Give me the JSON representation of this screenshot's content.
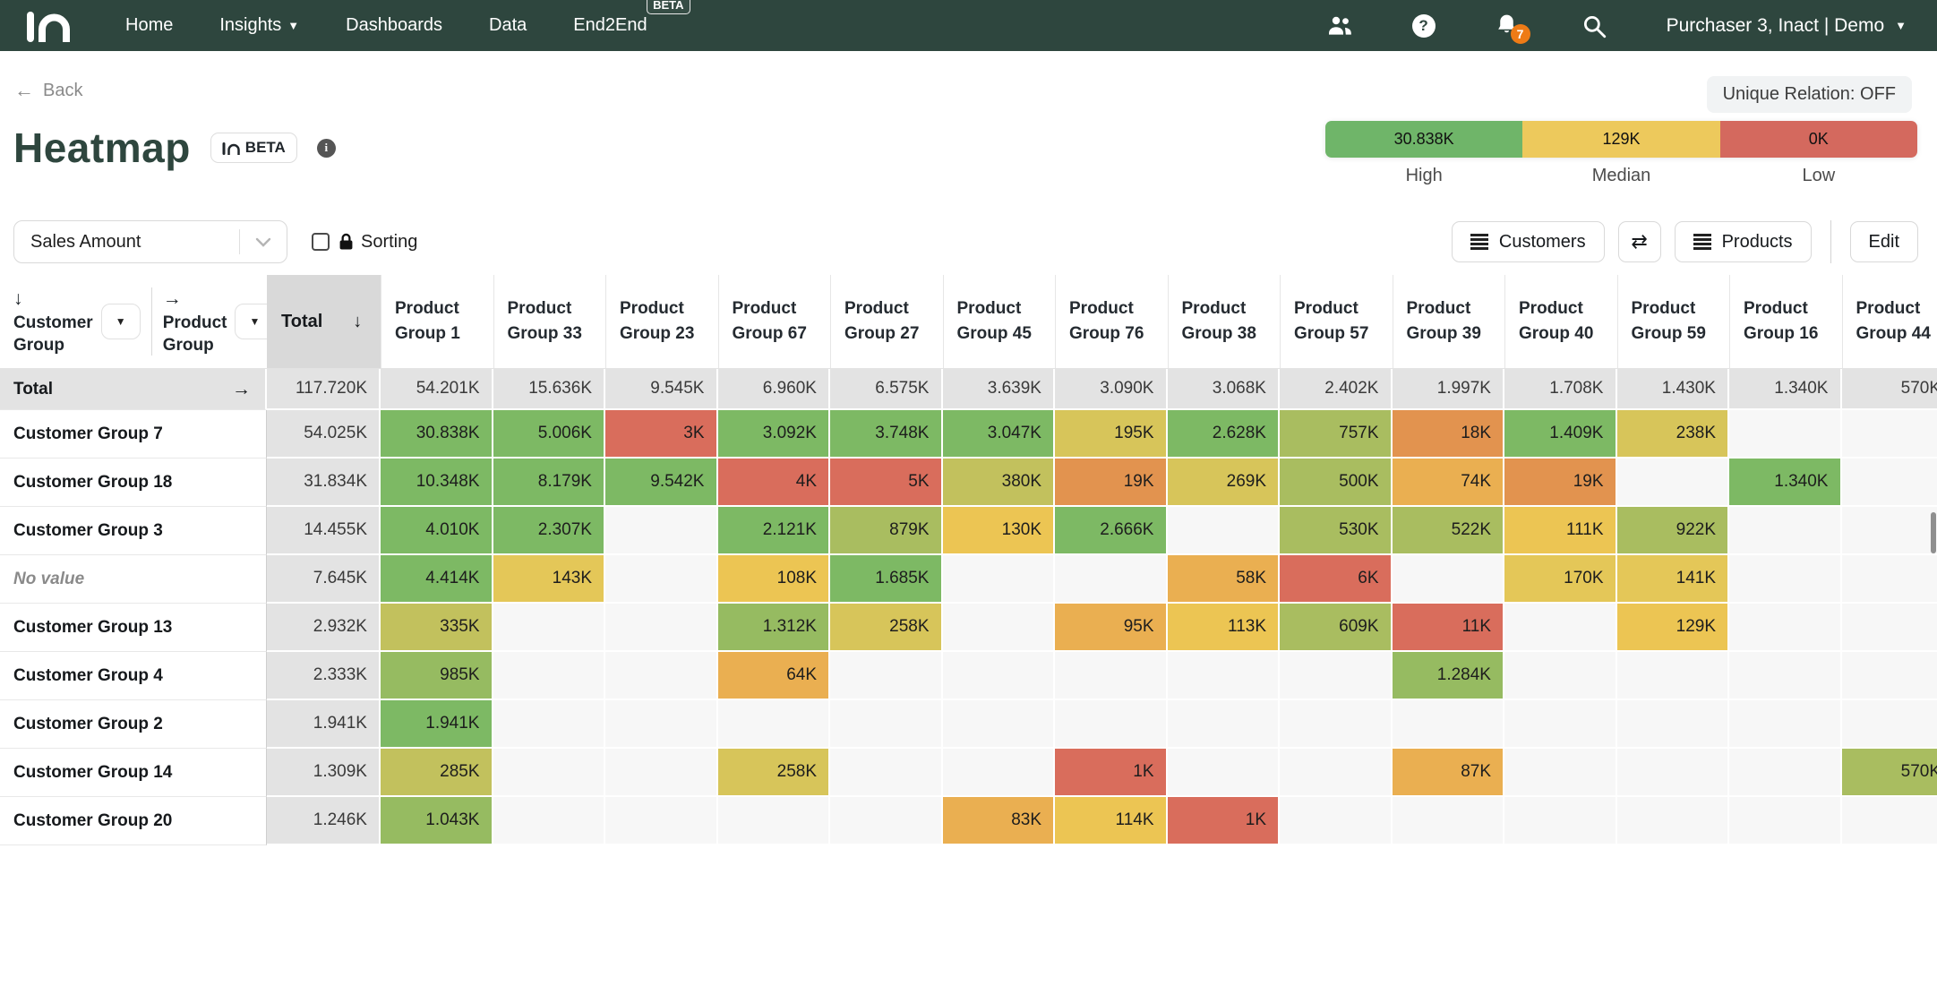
{
  "navbar": {
    "items": [
      {
        "label": "Home"
      },
      {
        "label": "Insights",
        "caret": true
      },
      {
        "label": "Dashboards"
      },
      {
        "label": "Data"
      },
      {
        "label": "End2End",
        "beta": "BETA"
      }
    ],
    "notification_count": "7",
    "user_menu": "Purchaser 3, Inact | Demo",
    "colors": {
      "bg": "#2e463e",
      "badge": "#ee7b16"
    }
  },
  "toolbar": {
    "back_label": "Back",
    "unique_relation": "Unique Relation: OFF"
  },
  "header": {
    "title": "Heatmap",
    "beta_badge": "BETA"
  },
  "legend": {
    "items": [
      {
        "label": "High",
        "value": "30.838K",
        "color": "#6fb569"
      },
      {
        "label": "Median",
        "value": "129K",
        "color": "#edc95c"
      },
      {
        "label": "Low",
        "value": "0K",
        "color": "#d4695e"
      }
    ]
  },
  "controls": {
    "measure_select": "Sales Amount",
    "sorting_label": "Sorting",
    "sorting_checked": false,
    "customers_button": "Customers",
    "products_button": "Products",
    "edit_button": "Edit"
  },
  "table": {
    "row_dimension": {
      "arrow": "↓",
      "label": "Customer Group"
    },
    "col_dimension": {
      "arrow": "→",
      "label": "Product Group"
    },
    "total_header": {
      "label": "Total",
      "sort_arrow": "↓"
    },
    "columns": [
      "Product Group 1",
      "Product Group 33",
      "Product Group 23",
      "Product Group 67",
      "Product Group 27",
      "Product Group 45",
      "Product Group 76",
      "Product Group 38",
      "Product Group 57",
      "Product Group 39",
      "Product Group 40",
      "Product Group 59",
      "Product Group 16",
      "Product Group 44"
    ],
    "palette": {
      "g1": "#7db964",
      "g2": "#96bb61",
      "yg": "#a9bd60",
      "ol": "#c2c15d",
      "y1": "#d7c55a",
      "y2": "#e4c758",
      "gd": "#ecc553",
      "am": "#eaaf51",
      "or": "#e2934f",
      "r": "#d96d5c",
      "empty": "#f7f7f7"
    },
    "total_row": {
      "label": "Total",
      "arrow": "→",
      "total": "117.720K",
      "values": [
        "54.201K",
        "15.636K",
        "9.545K",
        "6.960K",
        "6.575K",
        "3.639K",
        "3.090K",
        "3.068K",
        "2.402K",
        "1.997K",
        "1.708K",
        "1.430K",
        "1.340K",
        "570K"
      ]
    },
    "rows": [
      {
        "label": "Customer Group 7",
        "italic": false,
        "total": "54.025K",
        "cells": [
          [
            "30.838K",
            "g1"
          ],
          [
            "5.006K",
            "g1"
          ],
          [
            "3K",
            "r"
          ],
          [
            "3.092K",
            "g1"
          ],
          [
            "3.748K",
            "g1"
          ],
          [
            "3.047K",
            "g1"
          ],
          [
            "195K",
            "y1"
          ],
          [
            "2.628K",
            "g1"
          ],
          [
            "757K",
            "yg"
          ],
          [
            "18K",
            "or"
          ],
          [
            "1.409K",
            "g1"
          ],
          [
            "238K",
            "y1"
          ],
          null,
          null
        ]
      },
      {
        "label": "Customer Group 18",
        "italic": false,
        "total": "31.834K",
        "cells": [
          [
            "10.348K",
            "g1"
          ],
          [
            "8.179K",
            "g1"
          ],
          [
            "9.542K",
            "g1"
          ],
          [
            "4K",
            "r"
          ],
          [
            "5K",
            "r"
          ],
          [
            "380K",
            "ol"
          ],
          [
            "19K",
            "or"
          ],
          [
            "269K",
            "y1"
          ],
          [
            "500K",
            "yg"
          ],
          [
            "74K",
            "am"
          ],
          [
            "19K",
            "or"
          ],
          null,
          [
            "1.340K",
            "g1"
          ],
          null
        ]
      },
      {
        "label": "Customer Group 3",
        "italic": false,
        "total": "14.455K",
        "cells": [
          [
            "4.010K",
            "g1"
          ],
          [
            "2.307K",
            "g1"
          ],
          null,
          [
            "2.121K",
            "g1"
          ],
          [
            "879K",
            "yg"
          ],
          [
            "130K",
            "gd"
          ],
          [
            "2.666K",
            "g1"
          ],
          null,
          [
            "530K",
            "yg"
          ],
          [
            "522K",
            "yg"
          ],
          [
            "111K",
            "gd"
          ],
          [
            "922K",
            "yg"
          ],
          null,
          null
        ]
      },
      {
        "label": "No value",
        "italic": true,
        "total": "7.645K",
        "cells": [
          [
            "4.414K",
            "g1"
          ],
          [
            "143K",
            "y2"
          ],
          null,
          [
            "108K",
            "gd"
          ],
          [
            "1.685K",
            "g1"
          ],
          null,
          null,
          [
            "58K",
            "am"
          ],
          [
            "6K",
            "r"
          ],
          null,
          [
            "170K",
            "y2"
          ],
          [
            "141K",
            "y2"
          ],
          null,
          null
        ]
      },
      {
        "label": "Customer Group 13",
        "italic": false,
        "total": "2.932K",
        "cells": [
          [
            "335K",
            "ol"
          ],
          null,
          null,
          [
            "1.312K",
            "g2"
          ],
          [
            "258K",
            "y1"
          ],
          null,
          [
            "95K",
            "am"
          ],
          [
            "113K",
            "gd"
          ],
          [
            "609K",
            "yg"
          ],
          [
            "11K",
            "r"
          ],
          null,
          [
            "129K",
            "gd"
          ],
          null,
          null
        ]
      },
      {
        "label": "Customer Group 4",
        "italic": false,
        "total": "2.333K",
        "cells": [
          [
            "985K",
            "g2"
          ],
          null,
          null,
          [
            "64K",
            "am"
          ],
          null,
          null,
          null,
          null,
          null,
          [
            "1.284K",
            "g2"
          ],
          null,
          null,
          null,
          null
        ]
      },
      {
        "label": "Customer Group 2",
        "italic": false,
        "total": "1.941K",
        "cells": [
          [
            "1.941K",
            "g1"
          ],
          null,
          null,
          null,
          null,
          null,
          null,
          null,
          null,
          null,
          null,
          null,
          null,
          null
        ]
      },
      {
        "label": "Customer Group 14",
        "italic": false,
        "total": "1.309K",
        "cells": [
          [
            "285K",
            "ol"
          ],
          null,
          null,
          [
            "258K",
            "y1"
          ],
          null,
          null,
          [
            "1K",
            "r"
          ],
          null,
          null,
          [
            "87K",
            "am"
          ],
          null,
          null,
          null,
          [
            "570K",
            "yg"
          ]
        ]
      },
      {
        "label": "Customer Group 20",
        "italic": false,
        "total": "1.246K",
        "cells": [
          [
            "1.043K",
            "g2"
          ],
          null,
          null,
          null,
          null,
          [
            "83K",
            "am"
          ],
          [
            "114K",
            "gd"
          ],
          [
            "1K",
            "r"
          ],
          null,
          null,
          null,
          null,
          null,
          null
        ]
      }
    ]
  }
}
